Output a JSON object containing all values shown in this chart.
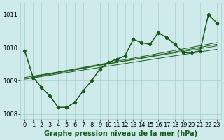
{
  "title": "Graphe pression niveau de la mer (hPa)",
  "background_color": "#ceeaea",
  "grid_color": "#a8d0d0",
  "line_color": "#1a5c1a",
  "x_values": [
    0,
    1,
    2,
    3,
    4,
    5,
    6,
    7,
    8,
    9,
    10,
    11,
    12,
    13,
    14,
    15,
    16,
    17,
    18,
    19,
    20,
    21,
    22,
    23
  ],
  "main_line": [
    1009.9,
    1009.1,
    1008.8,
    1008.55,
    1008.2,
    1008.2,
    1008.35,
    1008.7,
    1009.0,
    1009.35,
    1009.55,
    1009.65,
    1009.75,
    1010.25,
    1010.15,
    1010.1,
    1010.45,
    1010.3,
    1010.1,
    1009.85,
    1009.85,
    1009.9,
    1011.0,
    1010.75
  ],
  "line2": [
    1009.9,
    1009.1,
    1008.8,
    1008.55,
    1008.2,
    1008.2,
    1008.35,
    1008.7,
    1009.0,
    1009.35,
    1009.55,
    1009.65,
    1009.75,
    1010.25,
    1010.15,
    1010.1,
    1010.45,
    1010.3,
    1010.1,
    1009.85,
    1009.85,
    1009.9,
    1011.0,
    1010.75
  ],
  "trend1_x": [
    0,
    23
  ],
  "trend1_y": [
    1009.05,
    1009.95
  ],
  "trend2_x": [
    0,
    23
  ],
  "trend2_y": [
    1009.1,
    1010.05
  ],
  "trend3_x": [
    1,
    23
  ],
  "trend3_y": [
    1009.1,
    1010.1
  ],
  "trend4_x": [
    1,
    23
  ],
  "trend4_y": [
    1009.12,
    1010.15
  ],
  "ylim": [
    1007.85,
    1011.35
  ],
  "yticks": [
    1008,
    1009,
    1010,
    1011
  ],
  "xticks": [
    0,
    1,
    2,
    3,
    4,
    5,
    6,
    7,
    8,
    9,
    10,
    11,
    12,
    13,
    14,
    15,
    16,
    17,
    18,
    19,
    20,
    21,
    22,
    23
  ],
  "xlabel_fontsize": 6,
  "ylabel_fontsize": 6,
  "title_fontsize": 7,
  "marker": "D",
  "marker_size": 2.2,
  "linewidth": 0.9
}
